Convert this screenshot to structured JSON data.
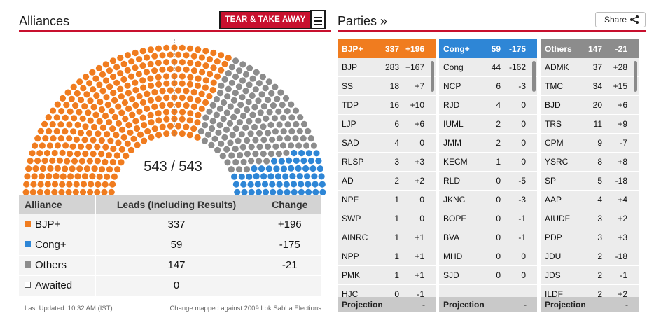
{
  "left": {
    "title": "Alliances",
    "tear_label": "TEAR & TAKE AWAY",
    "seat_count": "543 / 543",
    "hemicycle": {
      "total": 543,
      "order": [
        "bjp",
        "others",
        "cong"
      ],
      "counts": {
        "bjp": 337,
        "others": 147,
        "cong": 59
      }
    },
    "colors": {
      "bjp": "#f07c1f",
      "cong": "#2e86d6",
      "others": "#8c8c8c"
    },
    "table": {
      "headers": [
        "Alliance",
        "Leads (Including Results)",
        "Change"
      ],
      "rows": [
        {
          "name": "BJP+",
          "leads": "337",
          "change": "+196",
          "color": "#f07c1f"
        },
        {
          "name": "Cong+",
          "leads": "59",
          "change": "-175",
          "color": "#2e86d6"
        },
        {
          "name": "Others",
          "leads": "147",
          "change": "-21",
          "color": "#8c8c8c"
        },
        {
          "name": "Awaited",
          "leads": "0",
          "change": "",
          "color": ""
        }
      ]
    },
    "last_updated": "Last Updated: 10:32 AM (IST)",
    "change_note": "Change mapped against 2009 Lok Sabha Elections"
  },
  "right": {
    "title": "Parties »",
    "share_label": "Share",
    "columns": [
      {
        "head": {
          "name": "BJP+",
          "value": "337",
          "change": "+196",
          "color": "#f07c1f"
        },
        "rows": [
          {
            "name": "BJP",
            "value": "283",
            "change": "+167"
          },
          {
            "name": "SS",
            "value": "18",
            "change": "+7"
          },
          {
            "name": "TDP",
            "value": "16",
            "change": "+10"
          },
          {
            "name": "LJP",
            "value": "6",
            "change": "+6"
          },
          {
            "name": "SAD",
            "value": "4",
            "change": "0"
          },
          {
            "name": "RLSP",
            "value": "3",
            "change": "+3"
          },
          {
            "name": "AD",
            "value": "2",
            "change": "+2"
          },
          {
            "name": "NPF",
            "value": "1",
            "change": "0"
          },
          {
            "name": "SWP",
            "value": "1",
            "change": "0"
          },
          {
            "name": "AINRC",
            "value": "1",
            "change": "+1"
          },
          {
            "name": "NPP",
            "value": "1",
            "change": "+1"
          },
          {
            "name": "PMK",
            "value": "1",
            "change": "+1"
          },
          {
            "name": "HJC",
            "value": "0",
            "change": "-1"
          }
        ],
        "projection_label": "Projection",
        "projection_value": "-"
      },
      {
        "head": {
          "name": "Cong+",
          "value": "59",
          "change": "-175",
          "color": "#2e86d6"
        },
        "rows": [
          {
            "name": "Cong",
            "value": "44",
            "change": "-162"
          },
          {
            "name": "NCP",
            "value": "6",
            "change": "-3"
          },
          {
            "name": "RJD",
            "value": "4",
            "change": "0"
          },
          {
            "name": "IUML",
            "value": "2",
            "change": "0"
          },
          {
            "name": "JMM",
            "value": "2",
            "change": "0"
          },
          {
            "name": "KECM",
            "value": "1",
            "change": "0"
          },
          {
            "name": "RLD",
            "value": "0",
            "change": "-5"
          },
          {
            "name": "JKNC",
            "value": "0",
            "change": "-3"
          },
          {
            "name": "BOPF",
            "value": "0",
            "change": "-1"
          },
          {
            "name": "BVA",
            "value": "0",
            "change": "-1"
          },
          {
            "name": "MHD",
            "value": "0",
            "change": "0"
          },
          {
            "name": "SJD",
            "value": "0",
            "change": "0"
          }
        ],
        "projection_label": "Projection",
        "projection_value": "-"
      },
      {
        "head": {
          "name": "Others",
          "value": "147",
          "change": "-21",
          "color": "#8c8c8c"
        },
        "rows": [
          {
            "name": "ADMK",
            "value": "37",
            "change": "+28"
          },
          {
            "name": "TMC",
            "value": "34",
            "change": "+15"
          },
          {
            "name": "BJD",
            "value": "20",
            "change": "+6"
          },
          {
            "name": "TRS",
            "value": "11",
            "change": "+9"
          },
          {
            "name": "CPM",
            "value": "9",
            "change": "-7"
          },
          {
            "name": "YSRC",
            "value": "8",
            "change": "+8"
          },
          {
            "name": "SP",
            "value": "5",
            "change": "-18"
          },
          {
            "name": "AAP",
            "value": "4",
            "change": "+4"
          },
          {
            "name": "AIUDF",
            "value": "3",
            "change": "+2"
          },
          {
            "name": "PDP",
            "value": "3",
            "change": "+3"
          },
          {
            "name": "JDU",
            "value": "2",
            "change": "-18"
          },
          {
            "name": "JDS",
            "value": "2",
            "change": "-1"
          },
          {
            "name": "ILDF",
            "value": "2",
            "change": "+2"
          }
        ],
        "projection_label": "Projection",
        "projection_value": "-"
      }
    ]
  }
}
